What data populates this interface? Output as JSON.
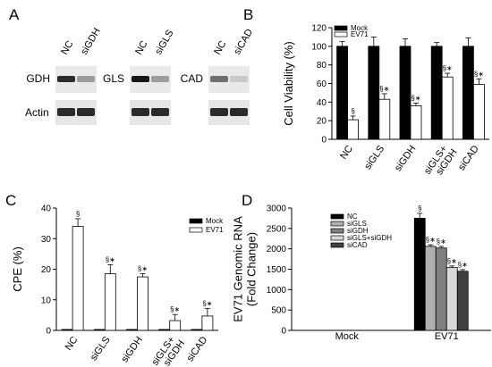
{
  "panel_labels": [
    "A",
    "B",
    "C",
    "D"
  ],
  "blot": {
    "groups": [
      {
        "target": "GDH",
        "lanes": [
          "NC",
          "siGDH"
        ],
        "band": [
          0.85,
          0.35
        ]
      },
      {
        "target": "GLS",
        "lanes": [
          "NC",
          "siGLS"
        ],
        "band": [
          0.95,
          0.35
        ]
      },
      {
        "target": "CAD",
        "lanes": [
          "NC",
          "siCAD"
        ],
        "band": [
          0.55,
          0.15
        ]
      }
    ],
    "loading_label": "Actin"
  },
  "colors": {
    "mock": "#000000",
    "ev71": "#ffffff",
    "siGLS": "#b0b0b0",
    "siGDH": "#808080",
    "siGLS_siGDH": "#d9d9d9",
    "siCAD": "#404040"
  },
  "chart_data": [
    {
      "type": "bar",
      "panel": "B",
      "categories": [
        "NC",
        "siGLS",
        "siGDH",
        "siGLS+\nsiGDH",
        "siCAD"
      ],
      "series": [
        {
          "name": "Mock",
          "values": [
            100,
            100,
            100,
            100,
            100
          ],
          "errors": [
            5,
            10,
            8,
            4,
            9
          ],
          "sig": [
            "",
            "",
            "",
            "",
            ""
          ]
        },
        {
          "name": "EV71",
          "values": [
            21,
            43,
            36,
            67,
            59
          ],
          "errors": [
            4,
            6,
            3,
            4,
            6
          ],
          "sig": [
            "§",
            "§∗",
            "§∗",
            "§∗",
            "§∗"
          ]
        }
      ],
      "ylabel": "Cell Viability (%)",
      "ylim": [
        0,
        120
      ],
      "yticks": [
        0,
        20,
        40,
        60,
        80,
        100,
        120
      ],
      "legend": "top-left"
    },
    {
      "type": "bar",
      "panel": "C",
      "categories": [
        "NC",
        "siGLS",
        "siGDH",
        "siGLS+\nsiGDH",
        "siCAD"
      ],
      "series": [
        {
          "name": "Mock",
          "values": [
            0.3,
            0.3,
            0.3,
            0.3,
            0.3
          ],
          "errors": [
            0,
            0,
            0,
            0,
            0
          ],
          "sig": [
            "",
            "",
            "",
            "",
            ""
          ]
        },
        {
          "name": "EV71",
          "values": [
            34,
            18.5,
            17.5,
            3.2,
            4.7
          ],
          "errors": [
            2.5,
            3,
            1,
            2,
            2.5
          ],
          "sig": [
            "§",
            "§∗",
            "§∗",
            "§∗",
            "§∗"
          ]
        }
      ],
      "ylabel": "CPE (%)",
      "ylim": [
        0,
        40
      ],
      "yticks": [
        0,
        10,
        20,
        30,
        40
      ],
      "legend": "top-right"
    },
    {
      "type": "bar",
      "panel": "D",
      "categories": [
        "Mock",
        "EV71"
      ],
      "series": [
        {
          "name": "NC",
          "values": [
            0,
            2750
          ],
          "errors": [
            0,
            120
          ],
          "sig": [
            "",
            "§"
          ]
        },
        {
          "name": "siGLS",
          "values": [
            0,
            2060
          ],
          "errors": [
            0,
            40
          ],
          "sig": [
            "",
            "§∗"
          ]
        },
        {
          "name": "siGDH",
          "values": [
            0,
            2020
          ],
          "errors": [
            0,
            40
          ],
          "sig": [
            "",
            "§∗"
          ]
        },
        {
          "name": "siGLS+siGDH",
          "values": [
            0,
            1540
          ],
          "errors": [
            0,
            40
          ],
          "sig": [
            "",
            "§∗"
          ]
        },
        {
          "name": "siCAD",
          "values": [
            0,
            1450
          ],
          "errors": [
            0,
            40
          ],
          "sig": [
            "",
            "§∗"
          ]
        }
      ],
      "ylabel": "EV71 Genomic RNA\n(Fold Change)",
      "ylim": [
        0,
        3000
      ],
      "yticks": [
        0,
        500,
        1000,
        1500,
        2000,
        2500,
        3000
      ],
      "legend": "top-left"
    }
  ]
}
